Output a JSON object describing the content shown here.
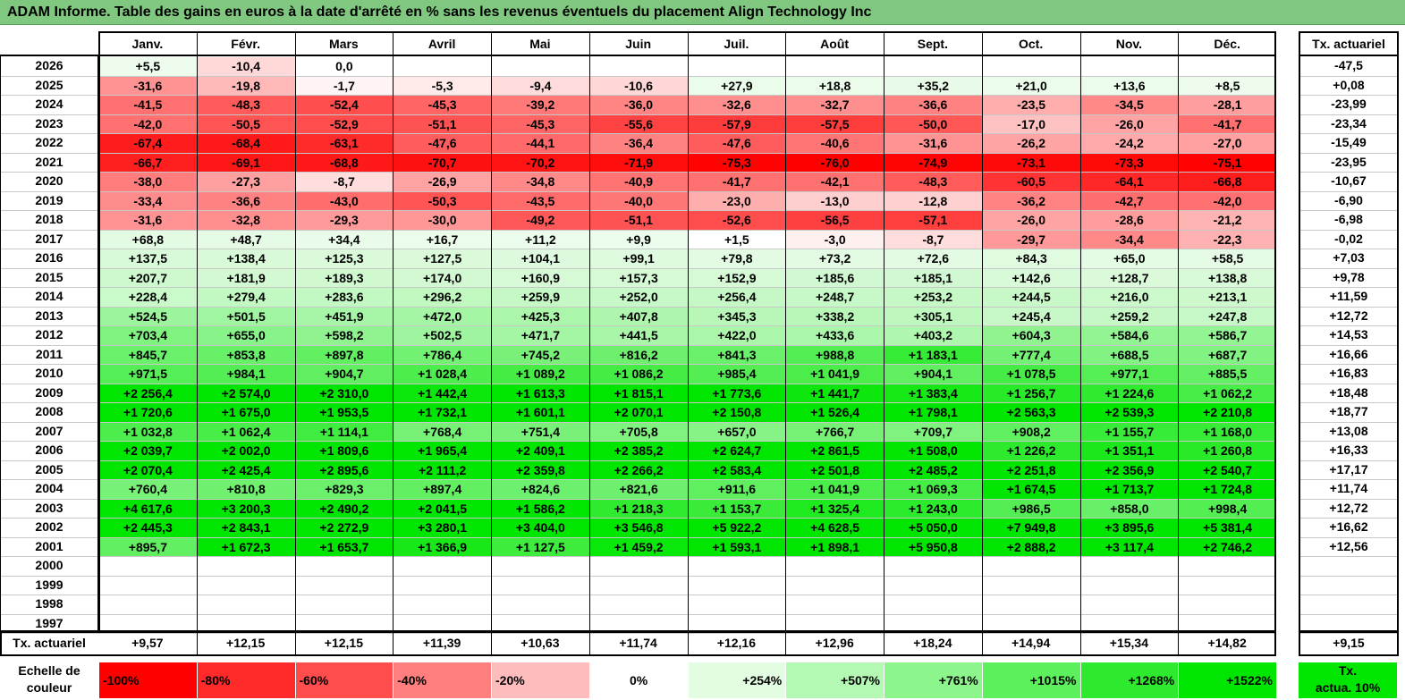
{
  "title": "ADAM Informe. Table des gains en euros à la date d'arrêté en % sans les revenus éventuels du placement Align Technology Inc",
  "chart_data": {
    "type": "table",
    "columns": [
      "Janv.",
      "Févr.",
      "Mars",
      "Avril",
      "Mai",
      "Juin",
      "Juil.",
      "Août",
      "Sept.",
      "Oct.",
      "Nov.",
      "Déc."
    ],
    "rate_header": "Tx. actuariel",
    "rows": [
      {
        "year": "2026",
        "values": [
          "+5,5",
          "-10,4",
          "0,0",
          "",
          "",
          "",
          "",
          "",
          "",
          "",
          "",
          ""
        ],
        "rate": "-47,5"
      },
      {
        "year": "2025",
        "values": [
          "-31,6",
          "-19,8",
          "-1,7",
          "-5,3",
          "-9,4",
          "-10,6",
          "+27,9",
          "+18,8",
          "+35,2",
          "+21,0",
          "+13,6",
          "+8,5"
        ],
        "rate": "+0,08"
      },
      {
        "year": "2024",
        "values": [
          "-41,5",
          "-48,3",
          "-52,4",
          "-45,3",
          "-39,2",
          "-36,0",
          "-32,6",
          "-32,7",
          "-36,6",
          "-23,5",
          "-34,5",
          "-28,1"
        ],
        "rate": "-23,99"
      },
      {
        "year": "2023",
        "values": [
          "-42,0",
          "-50,5",
          "-52,9",
          "-51,1",
          "-45,3",
          "-55,6",
          "-57,9",
          "-57,5",
          "-50,0",
          "-17,0",
          "-26,0",
          "-41,7"
        ],
        "rate": "-23,34"
      },
      {
        "year": "2022",
        "values": [
          "-67,4",
          "-68,4",
          "-63,1",
          "-47,6",
          "-44,1",
          "-36,4",
          "-47,6",
          "-40,6",
          "-31,6",
          "-26,2",
          "-24,2",
          "-27,0"
        ],
        "rate": "-15,49"
      },
      {
        "year": "2021",
        "values": [
          "-66,7",
          "-69,1",
          "-68,8",
          "-70,7",
          "-70,2",
          "-71,9",
          "-75,3",
          "-76,0",
          "-74,9",
          "-73,1",
          "-73,3",
          "-75,1"
        ],
        "rate": "-23,95"
      },
      {
        "year": "2020",
        "values": [
          "-38,0",
          "-27,3",
          "-8,7",
          "-26,9",
          "-34,8",
          "-40,9",
          "-41,7",
          "-42,1",
          "-48,3",
          "-60,5",
          "-64,1",
          "-66,8"
        ],
        "rate": "-10,67"
      },
      {
        "year": "2019",
        "values": [
          "-33,4",
          "-36,6",
          "-43,0",
          "-50,3",
          "-43,5",
          "-40,0",
          "-23,0",
          "-13,0",
          "-12,8",
          "-36,2",
          "-42,7",
          "-42,0"
        ],
        "rate": "-6,90"
      },
      {
        "year": "2018",
        "values": [
          "-31,6",
          "-32,8",
          "-29,3",
          "-30,0",
          "-49,2",
          "-51,1",
          "-52,6",
          "-56,5",
          "-57,1",
          "-26,0",
          "-28,6",
          "-21,2"
        ],
        "rate": "-6,98"
      },
      {
        "year": "2017",
        "values": [
          "+68,8",
          "+48,7",
          "+34,4",
          "+16,7",
          "+11,2",
          "+9,9",
          "+1,5",
          "-3,0",
          "-8,7",
          "-29,7",
          "-34,4",
          "-22,3"
        ],
        "rate": "-0,02"
      },
      {
        "year": "2016",
        "values": [
          "+137,5",
          "+138,4",
          "+125,3",
          "+127,5",
          "+104,1",
          "+99,1",
          "+79,8",
          "+73,2",
          "+72,6",
          "+84,3",
          "+65,0",
          "+58,5"
        ],
        "rate": "+7,03"
      },
      {
        "year": "2015",
        "values": [
          "+207,7",
          "+181,9",
          "+189,3",
          "+174,0",
          "+160,9",
          "+157,3",
          "+152,9",
          "+185,6",
          "+185,1",
          "+142,6",
          "+128,7",
          "+138,8"
        ],
        "rate": "+9,78"
      },
      {
        "year": "2014",
        "values": [
          "+228,4",
          "+279,4",
          "+283,6",
          "+296,2",
          "+259,9",
          "+252,0",
          "+256,4",
          "+248,7",
          "+253,2",
          "+244,5",
          "+216,0",
          "+213,1"
        ],
        "rate": "+11,59"
      },
      {
        "year": "2013",
        "values": [
          "+524,5",
          "+501,5",
          "+451,9",
          "+472,0",
          "+425,3",
          "+407,8",
          "+345,3",
          "+338,2",
          "+305,1",
          "+245,4",
          "+259,2",
          "+247,8"
        ],
        "rate": "+12,72"
      },
      {
        "year": "2012",
        "values": [
          "+703,4",
          "+655,0",
          "+598,2",
          "+502,5",
          "+471,7",
          "+441,5",
          "+422,0",
          "+433,6",
          "+403,2",
          "+604,3",
          "+584,6",
          "+586,7"
        ],
        "rate": "+14,53"
      },
      {
        "year": "2011",
        "values": [
          "+845,7",
          "+853,8",
          "+897,8",
          "+786,4",
          "+745,2",
          "+816,2",
          "+841,3",
          "+988,8",
          "+1 183,1",
          "+777,4",
          "+688,5",
          "+687,7"
        ],
        "rate": "+16,66"
      },
      {
        "year": "2010",
        "values": [
          "+971,5",
          "+984,1",
          "+904,7",
          "+1 028,4",
          "+1 089,2",
          "+1 086,2",
          "+985,4",
          "+1 041,9",
          "+904,1",
          "+1 078,5",
          "+977,1",
          "+885,5"
        ],
        "rate": "+16,83"
      },
      {
        "year": "2009",
        "values": [
          "+2 256,4",
          "+2 574,0",
          "+2 310,0",
          "+1 442,4",
          "+1 613,3",
          "+1 815,1",
          "+1 773,6",
          "+1 441,7",
          "+1 383,4",
          "+1 256,7",
          "+1 224,6",
          "+1 062,2"
        ],
        "rate": "+18,48"
      },
      {
        "year": "2008",
        "values": [
          "+1 720,6",
          "+1 675,0",
          "+1 953,5",
          "+1 732,1",
          "+1 601,1",
          "+2 070,1",
          "+2 150,8",
          "+1 526,4",
          "+1 798,1",
          "+2 563,3",
          "+2 539,3",
          "+2 210,8"
        ],
        "rate": "+18,77"
      },
      {
        "year": "2007",
        "values": [
          "+1 032,8",
          "+1 062,4",
          "+1 114,1",
          "+768,4",
          "+751,4",
          "+705,8",
          "+657,0",
          "+766,7",
          "+709,7",
          "+908,2",
          "+1 155,7",
          "+1 168,0"
        ],
        "rate": "+13,08"
      },
      {
        "year": "2006",
        "values": [
          "+2 039,7",
          "+2 002,0",
          "+1 809,6",
          "+1 965,4",
          "+2 409,1",
          "+2 385,2",
          "+2 624,7",
          "+2 861,5",
          "+1 508,0",
          "+1 226,2",
          "+1 351,1",
          "+1 260,8"
        ],
        "rate": "+16,33"
      },
      {
        "year": "2005",
        "values": [
          "+2 070,4",
          "+2 425,4",
          "+2 895,6",
          "+2 111,2",
          "+2 359,8",
          "+2 266,2",
          "+2 583,4",
          "+2 501,8",
          "+2 485,2",
          "+2 251,8",
          "+2 356,9",
          "+2 540,7"
        ],
        "rate": "+17,17"
      },
      {
        "year": "2004",
        "values": [
          "+760,4",
          "+810,8",
          "+829,3",
          "+897,4",
          "+824,6",
          "+821,6",
          "+911,6",
          "+1 041,9",
          "+1 069,3",
          "+1 674,5",
          "+1 713,7",
          "+1 724,8"
        ],
        "rate": "+11,74"
      },
      {
        "year": "2003",
        "values": [
          "+4 617,6",
          "+3 200,3",
          "+2 490,2",
          "+2 041,5",
          "+1 586,2",
          "+1 218,3",
          "+1 153,7",
          "+1 325,4",
          "+1 243,0",
          "+986,5",
          "+858,0",
          "+998,4"
        ],
        "rate": "+12,72"
      },
      {
        "year": "2002",
        "values": [
          "+2 445,3",
          "+2 843,1",
          "+2 272,9",
          "+3 280,1",
          "+3 404,0",
          "+3 546,8",
          "+5 922,2",
          "+4 628,5",
          "+5 050,0",
          "+7 949,8",
          "+3 895,6",
          "+5 381,4"
        ],
        "rate": "+16,62"
      },
      {
        "year": "2001",
        "values": [
          "+895,7",
          "+1 672,3",
          "+1 653,7",
          "+1 366,9",
          "+1 127,5",
          "+1 459,2",
          "+1 593,1",
          "+1 898,1",
          "+5 950,8",
          "+2 888,2",
          "+3 117,4",
          "+2 746,2"
        ],
        "rate": "+12,56"
      },
      {
        "year": "2000",
        "values": [
          "",
          "",
          "",
          "",
          "",
          "",
          "",
          "",
          "",
          "",
          "",
          ""
        ],
        "rate": ""
      },
      {
        "year": "1999",
        "values": [
          "",
          "",
          "",
          "",
          "",
          "",
          "",
          "",
          "",
          "",
          "",
          ""
        ],
        "rate": ""
      },
      {
        "year": "1998",
        "values": [
          "",
          "",
          "",
          "",
          "",
          "",
          "",
          "",
          "",
          "",
          "",
          ""
        ],
        "rate": ""
      },
      {
        "year": "1997",
        "values": [
          "",
          "",
          "",
          "",
          "",
          "",
          "",
          "",
          "",
          "",
          "",
          ""
        ],
        "rate": ""
      }
    ],
    "footer": {
      "label": "Tx. actuariel",
      "values": [
        "+9,57",
        "+12,15",
        "+12,15",
        "+11,39",
        "+10,63",
        "+11,74",
        "+12,16",
        "+12,96",
        "+18,24",
        "+14,94",
        "+15,34",
        "+14,82"
      ],
      "rate": "+9,15"
    },
    "legend": {
      "label_line1": "Echelle de",
      "label_line2": "couleur",
      "items": [
        {
          "label": "-100%",
          "color": "#ff0000"
        },
        {
          "label": "-80%",
          "color": "#ff2a2a"
        },
        {
          "label": "-60%",
          "color": "#ff4c4c"
        },
        {
          "label": "-40%",
          "color": "#ff7e7e"
        },
        {
          "label": "-20%",
          "color": "#ffbcbc"
        },
        {
          "label": "0%",
          "color": "#ffffff"
        },
        {
          "label": "+254%",
          "color": "#e2fde2"
        },
        {
          "label": "+507%",
          "color": "#b3f9b3"
        },
        {
          "label": "+761%",
          "color": "#8cf58c"
        },
        {
          "label": "+1015%",
          "color": "#5cf05c"
        },
        {
          "label": "+1268%",
          "color": "#2eea2e"
        },
        {
          "label": "+1522%",
          "color": "#00e600"
        }
      ],
      "rate_label_line1": "Tx.",
      "rate_label_line2": "actua. 10%",
      "rate_color": "#00e600"
    }
  }
}
